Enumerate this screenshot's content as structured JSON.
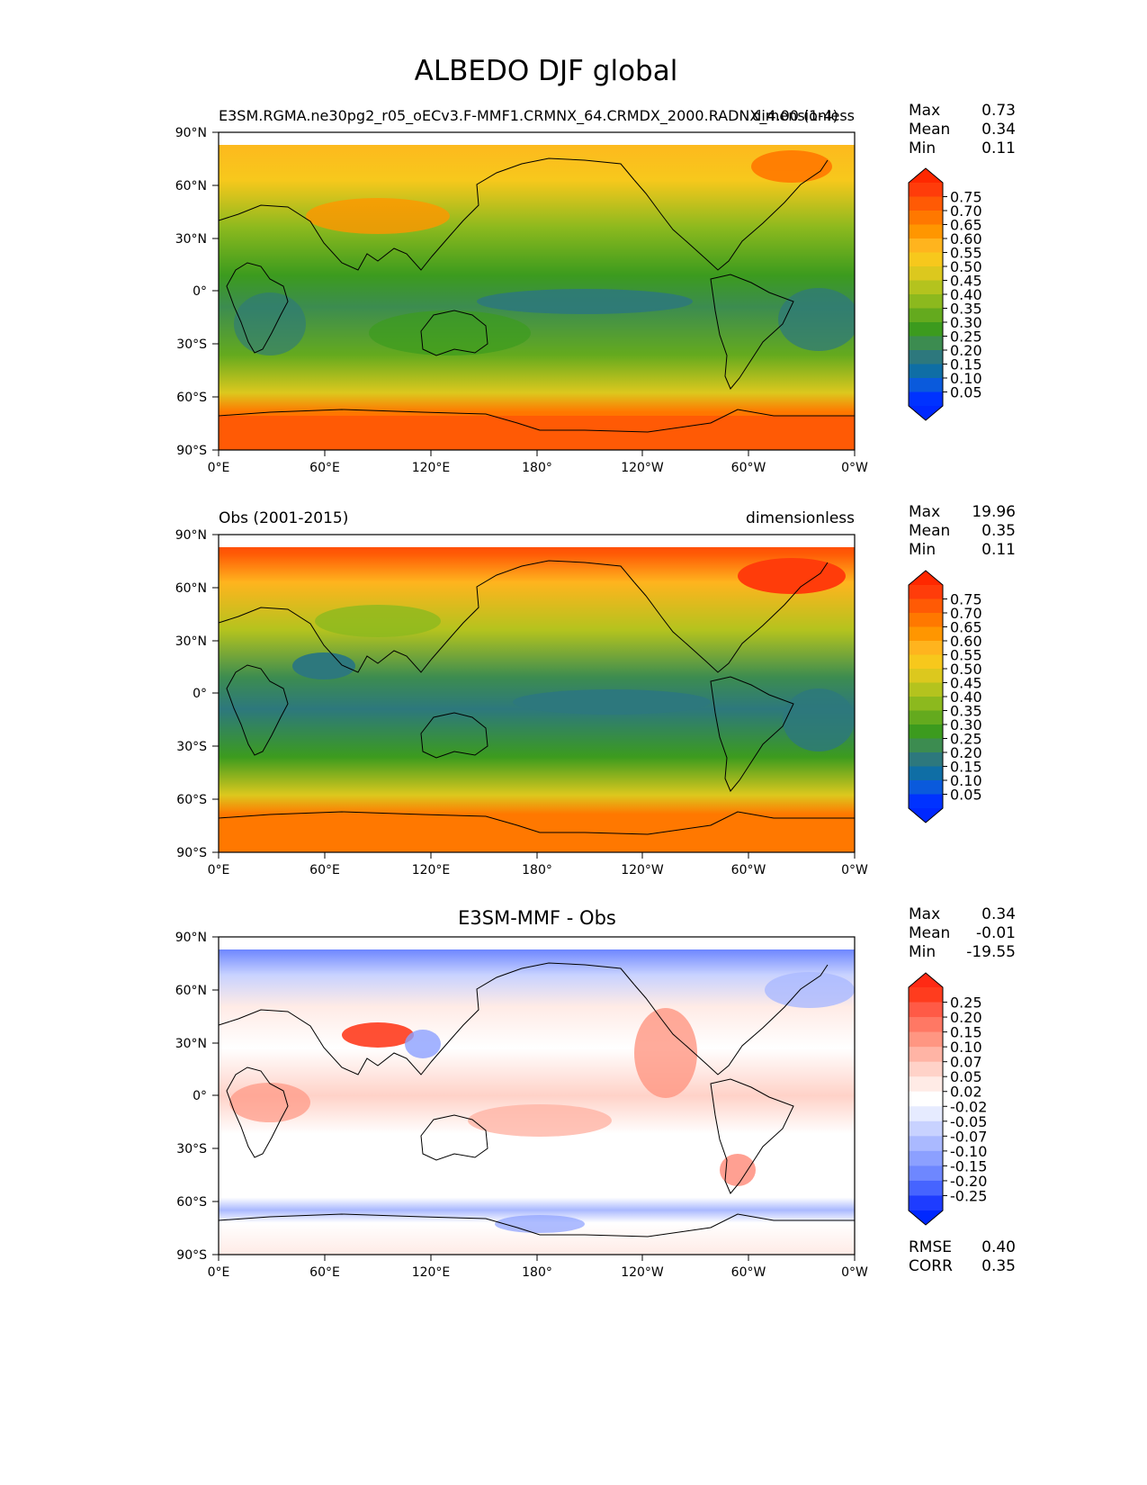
{
  "figure": {
    "title": "ALBEDO DJF global"
  },
  "axes": {
    "lat_ticks": [
      "90°N",
      "60°N",
      "30°N",
      "0°",
      "30°S",
      "60°S",
      "90°S"
    ],
    "lon_ticks": [
      "0°E",
      "60°E",
      "120°E",
      "180°",
      "120°W",
      "60°W",
      "0°W"
    ]
  },
  "chart_data": [
    {
      "type": "heatmap",
      "title_left": "E3SM.RGMA.ne30pg2_r05_oECv3.F-MMF1.CRMNX_64.CRMDX_2000.RADNX_4.00 (1-4)",
      "title_right": "dimensionless",
      "title_center": "",
      "stats": [
        {
          "label": "Max",
          "value": "0.73"
        },
        {
          "label": "Mean",
          "value": "0.34"
        },
        {
          "label": "Min",
          "value": "0.11"
        }
      ],
      "colorbar": {
        "labels": [
          "0.75",
          "0.70",
          "0.65",
          "0.60",
          "0.55",
          "0.50",
          "0.45",
          "0.40",
          "0.35",
          "0.30",
          "0.25",
          "0.20",
          "0.15",
          "0.10",
          "0.05"
        ],
        "colors": [
          "#ff3c0a",
          "#ff5a05",
          "#ff7800",
          "#ff9600",
          "#ffb41e",
          "#f7c81c",
          "#dcc81e",
          "#b4c31e",
          "#8cb91e",
          "#64aa1e",
          "#3c9b1e",
          "#3c8c50",
          "#2d787d",
          "#0f6ea5",
          "#0a5adc",
          "#0032ff"
        ],
        "max_color": "#ff2800",
        "min_color": "#0028ff"
      },
      "x_range": [
        0,
        360
      ],
      "y_range": [
        -90,
        90
      ]
    },
    {
      "type": "heatmap",
      "title_left": "Obs (2001-2015)",
      "title_right": "dimensionless",
      "title_center": "",
      "stats": [
        {
          "label": "Max",
          "value": "19.96"
        },
        {
          "label": "Mean",
          "value": "0.35"
        },
        {
          "label": "Min",
          "value": "0.11"
        }
      ],
      "colorbar": {
        "labels": [
          "0.75",
          "0.70",
          "0.65",
          "0.60",
          "0.55",
          "0.50",
          "0.45",
          "0.40",
          "0.35",
          "0.30",
          "0.25",
          "0.20",
          "0.15",
          "0.10",
          "0.05"
        ],
        "colors": [
          "#ff3c0a",
          "#ff5a05",
          "#ff7800",
          "#ff9600",
          "#ffb41e",
          "#f7c81c",
          "#dcc81e",
          "#b4c31e",
          "#8cb91e",
          "#64aa1e",
          "#3c9b1e",
          "#3c8c50",
          "#2d787d",
          "#0f6ea5",
          "#0a5adc",
          "#0032ff"
        ],
        "max_color": "#ff2800",
        "min_color": "#0028ff"
      },
      "x_range": [
        0,
        360
      ],
      "y_range": [
        -90,
        90
      ]
    },
    {
      "type": "heatmap",
      "title_left": "",
      "title_right": "",
      "title_center": "E3SM-MMF - Obs",
      "stats": [
        {
          "label": "Max",
          "value": "0.34"
        },
        {
          "label": "Mean",
          "value": "-0.01"
        },
        {
          "label": "Min",
          "value": "-19.55"
        }
      ],
      "colorbar": {
        "labels": [
          "0.25",
          "0.20",
          "0.15",
          "0.10",
          "0.07",
          "0.05",
          "0.02",
          "-0.02",
          "-0.05",
          "-0.07",
          "-0.10",
          "-0.15",
          "-0.20",
          "-0.25"
        ],
        "colors": [
          "#ff3c1e",
          "#ff5a46",
          "#ff7864",
          "#ff9682",
          "#ffb4a5",
          "#ffd2c8",
          "#ffebe6",
          "#ffffff",
          "#e6ebff",
          "#c8d2ff",
          "#aab9ff",
          "#8ca0ff",
          "#6e87ff",
          "#4664ff",
          "#1e3cff"
        ],
        "max_color": "#ff2a14",
        "min_color": "#0028ff"
      },
      "bottom_stats": [
        {
          "label": "RMSE",
          "value": "0.40"
        },
        {
          "label": "CORR",
          "value": "0.35"
        }
      ],
      "x_range": [
        0,
        360
      ],
      "y_range": [
        -90,
        90
      ]
    }
  ]
}
